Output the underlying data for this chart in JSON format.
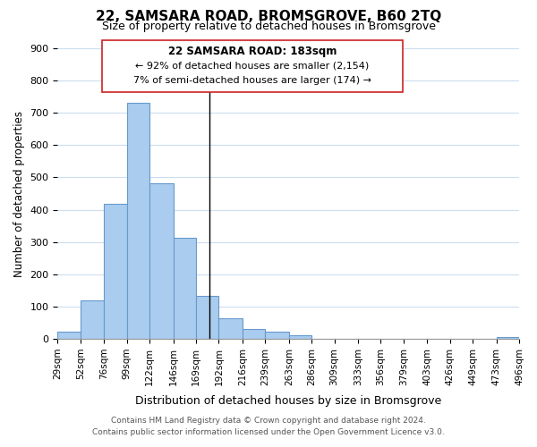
{
  "title": "22, SAMSARA ROAD, BROMSGROVE, B60 2TQ",
  "subtitle": "Size of property relative to detached houses in Bromsgrove",
  "xlabel": "Distribution of detached houses by size in Bromsgrove",
  "ylabel": "Number of detached properties",
  "bar_color": "#aaccee",
  "bar_edge_color": "#6699cc",
  "background_color": "#ffffff",
  "grid_color": "#ccddee",
  "annotation_title": "22 SAMSARA ROAD: 183sqm",
  "annotation_line1": "← 92% of detached houses are smaller (2,154)",
  "annotation_line2": "7% of semi-detached houses are larger (174) →",
  "property_line_x": 183,
  "bin_edges": [
    29,
    52,
    76,
    99,
    122,
    146,
    169,
    192,
    216,
    239,
    263,
    286,
    309,
    333,
    356,
    379,
    403,
    426,
    449,
    473,
    496
  ],
  "bin_labels": [
    "29sqm",
    "52sqm",
    "76sqm",
    "99sqm",
    "122sqm",
    "146sqm",
    "169sqm",
    "192sqm",
    "216sqm",
    "239sqm",
    "263sqm",
    "286sqm",
    "309sqm",
    "333sqm",
    "356sqm",
    "379sqm",
    "403sqm",
    "426sqm",
    "449sqm",
    "473sqm",
    "496sqm"
  ],
  "counts": [
    22,
    120,
    418,
    730,
    483,
    313,
    133,
    65,
    30,
    22,
    10,
    0,
    0,
    0,
    0,
    0,
    0,
    0,
    0,
    7
  ],
  "ylim": [
    0,
    900
  ],
  "yticks": [
    0,
    100,
    200,
    300,
    400,
    500,
    600,
    700,
    800,
    900
  ],
  "footer_line1": "Contains HM Land Registry data © Crown copyright and database right 2024.",
  "footer_line2": "Contains public sector information licensed under the Open Government Licence v3.0."
}
